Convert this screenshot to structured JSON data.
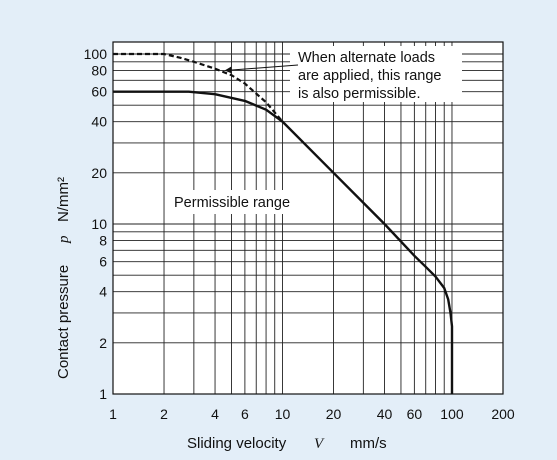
{
  "chart_data": {
    "type": "line",
    "title": "",
    "x_axis": {
      "scale": "log",
      "range": [
        1,
        200
      ],
      "ticks": [
        1,
        2,
        4,
        6,
        10,
        20,
        40,
        60,
        100,
        200
      ],
      "tick_labels": [
        "1",
        "2",
        "4",
        "6",
        "10",
        "20",
        "40",
        "60",
        "100",
        "200"
      ],
      "gridlines": [
        1,
        2,
        3,
        4,
        5,
        6,
        7,
        8,
        9,
        10,
        20,
        30,
        40,
        50,
        60,
        70,
        80,
        90,
        100,
        200
      ],
      "label_text": "Sliding velocity",
      "label_symbol": "V",
      "label_unit": "mm/s"
    },
    "y_axis": {
      "scale": "log",
      "range": [
        1,
        100
      ],
      "ticks": [
        1,
        2,
        4,
        6,
        8,
        10,
        20,
        40,
        60,
        80,
        100
      ],
      "tick_labels": [
        "1",
        "2",
        "4",
        "6",
        "8",
        "10",
        "20",
        "40",
        "60",
        "80",
        "100"
      ],
      "gridlines": [
        1,
        2,
        3,
        4,
        5,
        6,
        7,
        8,
        9,
        10,
        20,
        30,
        40,
        50,
        60,
        70,
        80,
        90,
        100
      ],
      "label_text": "Contact pressure",
      "label_symbol": "p",
      "label_unit": "N/mm²"
    },
    "grid": true,
    "series": [
      {
        "style": "solid",
        "points": [
          [
            1,
            60
          ],
          [
            2.8,
            60
          ],
          [
            4,
            58
          ],
          [
            6,
            53
          ],
          [
            8,
            47
          ],
          [
            10,
            40
          ],
          [
            20,
            20
          ],
          [
            40,
            10
          ],
          [
            60,
            6.5
          ],
          [
            70,
            5.6
          ],
          [
            80,
            4.9
          ],
          [
            90,
            4.2
          ],
          [
            95,
            3.6
          ],
          [
            98,
            3.0
          ],
          [
            100,
            2.5
          ],
          [
            100,
            1
          ]
        ]
      },
      {
        "style": "dashed",
        "points": [
          [
            1,
            100
          ],
          [
            2,
            100
          ],
          [
            2.5,
            95
          ],
          [
            3,
            90
          ],
          [
            4,
            82
          ],
          [
            5,
            75
          ],
          [
            6,
            67
          ],
          [
            8,
            52
          ],
          [
            10,
            40
          ]
        ]
      }
    ],
    "annotations": [
      {
        "lines": [
          "When alternate loads",
          "are applied, this range",
          "is also permissible."
        ],
        "arrow_to": [
          4.6,
          80
        ]
      },
      {
        "lines": [
          "Permissible range"
        ]
      }
    ]
  }
}
